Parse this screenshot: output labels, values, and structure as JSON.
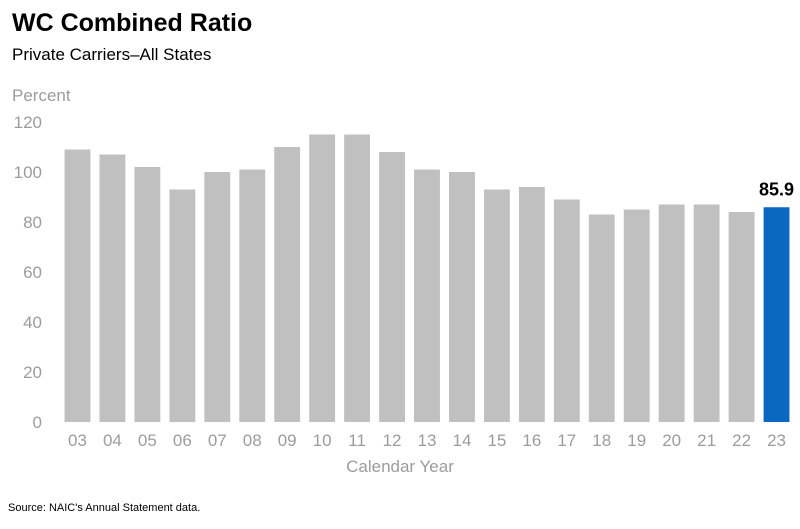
{
  "header": {
    "title": "WC Combined Ratio",
    "subtitle": "Private Carriers–All States"
  },
  "footer": {
    "source": "Source: NAIC's Annual Statement data."
  },
  "colors": {
    "bar_default": "#c0c0c0",
    "bar_highlight": "#0a68c0",
    "axis_text": "#9c9c9c"
  },
  "chart_data": {
    "type": "bar",
    "title": "WC Combined Ratio",
    "subtitle": "Private Carriers–All States",
    "ylabel": "Percent",
    "xlabel": "Calendar Year",
    "ylim": [
      0,
      120
    ],
    "yticks": [
      0,
      20,
      40,
      60,
      80,
      100,
      120
    ],
    "grid": false,
    "categories": [
      "03",
      "04",
      "05",
      "06",
      "07",
      "08",
      "09",
      "10",
      "11",
      "12",
      "13",
      "14",
      "15",
      "16",
      "17",
      "18",
      "19",
      "20",
      "21",
      "22",
      "23"
    ],
    "values": [
      109,
      107,
      102,
      93,
      100,
      101,
      110,
      115,
      115,
      108,
      101,
      100,
      93,
      94,
      89,
      83,
      85,
      87,
      87,
      84,
      85.9
    ],
    "highlight_index": 20,
    "data_labels": [
      {
        "index": 20,
        "text": "85.9"
      }
    ]
  }
}
